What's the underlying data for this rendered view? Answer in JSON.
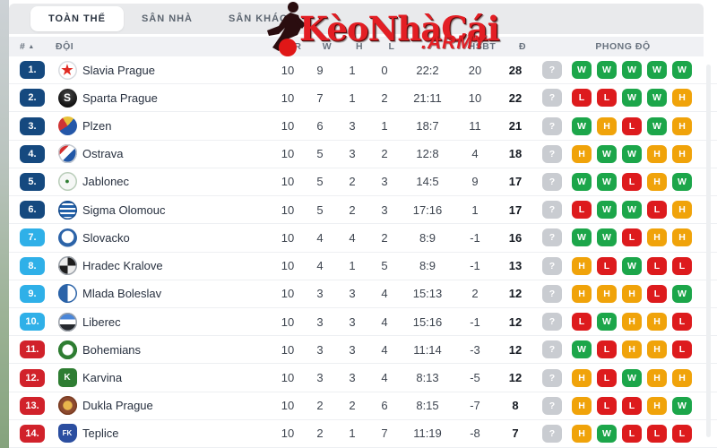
{
  "tabs": {
    "items": [
      {
        "label": "TOÀN THỂ",
        "active": true
      },
      {
        "label": "SÂN NHÀ",
        "active": false
      },
      {
        "label": "SÂN KHÁCH",
        "active": false
      }
    ]
  },
  "watermark": {
    "brand": "KèoNhàCái",
    "suffix": ".ARMY",
    "color": "#e31e24"
  },
  "table": {
    "columns": {
      "rank": "#",
      "rank_sort_icon": "▲",
      "team": "ĐỘI",
      "tr": "TR",
      "w": "W",
      "h": "H",
      "l": "L",
      "goals": "",
      "hsbt": "HSBT",
      "d": "Đ",
      "form": "PHONG ĐỘ"
    },
    "rank_colors": {
      "top": "#15497f",
      "mid": "#2fb0e8",
      "bottom": "#d1222b"
    },
    "form_colors": {
      "W": "#1ca64a",
      "H": "#f0a30a",
      "L": "#dd1b1d",
      "?": "#c9ccd1"
    },
    "rows": [
      {
        "rank": "1.",
        "tier": "top",
        "team": "Slavia Prague",
        "tr": "10",
        "w": "9",
        "h": "1",
        "l": "0",
        "goals": "22:2",
        "hsbt": "20",
        "d": "28",
        "form": [
          "?",
          "W",
          "W",
          "W",
          "W",
          "W"
        ],
        "logo": {
          "bg": "#ffffff",
          "border": "#d8dbe0",
          "glyph": "★",
          "fg": "#e02a22",
          "glyph_size": "15px"
        }
      },
      {
        "rank": "2.",
        "tier": "top",
        "team": "Sparta Prague",
        "tr": "10",
        "w": "7",
        "h": "1",
        "l": "2",
        "goals": "21:11",
        "hsbt": "10",
        "d": "22",
        "form": [
          "?",
          "L",
          "L",
          "W",
          "W",
          "H"
        ],
        "logo": {
          "bg": "radial-gradient(circle at 50% 35%, #484848, #111111 72%)",
          "glyph": "S",
          "fg": "#ffffff",
          "glyph_size": "12px"
        }
      },
      {
        "rank": "3.",
        "tier": "top",
        "team": "Plzen",
        "tr": "10",
        "w": "6",
        "h": "3",
        "l": "1",
        "goals": "18:7",
        "hsbt": "11",
        "d": "21",
        "form": [
          "?",
          "W",
          "H",
          "L",
          "W",
          "H"
        ],
        "logo": {
          "bg": "conic-gradient(from 40deg, #2457a8 0 55%, #cf3434 55% 80%, #e8c23a 80% 100%)",
          "glyph": "",
          "fg": ""
        }
      },
      {
        "rank": "4.",
        "tier": "top",
        "team": "Ostrava",
        "tr": "10",
        "w": "5",
        "h": "3",
        "l": "2",
        "goals": "12:8",
        "hsbt": "4",
        "d": "18",
        "form": [
          "?",
          "H",
          "W",
          "W",
          "H",
          "H"
        ],
        "logo": {
          "bg": "linear-gradient(135deg, #d42f2f 32%, #ffffff 32% 55%, #2057a7 55%)",
          "border": "#c5cad1",
          "glyph": "",
          "fg": "",
          "radius": "50% 50% 46% 46% / 42% 42% 58% 58%"
        }
      },
      {
        "rank": "5.",
        "tier": "top",
        "team": "Jablonec",
        "tr": "10",
        "w": "5",
        "h": "2",
        "l": "3",
        "goals": "14:5",
        "hsbt": "9",
        "d": "17",
        "form": [
          "?",
          "W",
          "W",
          "L",
          "H",
          "W"
        ],
        "logo": {
          "bg": "#f5f7f5",
          "border": "#b9cdb9",
          "glyph": "●",
          "fg": "#2e7d32",
          "glyph_size": "9px"
        }
      },
      {
        "rank": "6.",
        "tier": "top",
        "team": "Sigma Olomouc",
        "tr": "10",
        "w": "5",
        "h": "2",
        "l": "3",
        "goals": "17:16",
        "hsbt": "1",
        "d": "17",
        "form": [
          "?",
          "L",
          "W",
          "W",
          "L",
          "H"
        ],
        "logo": {
          "bg": "repeating-linear-gradient(180deg, #2160a8 0 3px, #ffffff 3px 5px)",
          "border": "#1b4f8f",
          "glyph": "",
          "fg": ""
        }
      },
      {
        "rank": "7.",
        "tier": "mid",
        "team": "Slovacko",
        "tr": "10",
        "w": "4",
        "h": "4",
        "l": "2",
        "goals": "8:9",
        "hsbt": "-1",
        "d": "16",
        "form": [
          "?",
          "W",
          "W",
          "L",
          "H",
          "H"
        ],
        "logo": {
          "bg": "radial-gradient(circle at 50% 45%, #ffffff 42%, #2b63a8 46% 68%, #cdd9ea 72%)",
          "glyph": "",
          "fg": ""
        }
      },
      {
        "rank": "8.",
        "tier": "mid",
        "team": "Hradec Kralove",
        "tr": "10",
        "w": "4",
        "h": "1",
        "l": "5",
        "goals": "8:9",
        "hsbt": "-1",
        "d": "13",
        "form": [
          "?",
          "H",
          "L",
          "W",
          "L",
          "L"
        ],
        "logo": {
          "bg": "conic-gradient(#1d1d1d 0 25%, #ececec 25% 50%, #1d1d1d 50% 75%, #ececec 75%)",
          "border": "#9aa0a8",
          "glyph": "",
          "fg": ""
        }
      },
      {
        "rank": "9.",
        "tier": "mid",
        "team": "Mlada Boleslav",
        "tr": "10",
        "w": "3",
        "h": "3",
        "l": "4",
        "goals": "15:13",
        "hsbt": "2",
        "d": "12",
        "form": [
          "?",
          "H",
          "H",
          "H",
          "L",
          "W"
        ],
        "logo": {
          "bg": "linear-gradient(90deg, #2b63a8 50%, #ffffff 50%)",
          "border": "#2b63a8",
          "glyph": "",
          "fg": ""
        }
      },
      {
        "rank": "10.",
        "tier": "mid",
        "team": "Liberec",
        "tr": "10",
        "w": "3",
        "h": "3",
        "l": "4",
        "goals": "15:16",
        "hsbt": "-1",
        "d": "12",
        "form": [
          "?",
          "L",
          "W",
          "H",
          "H",
          "L"
        ],
        "logo": {
          "bg": "linear-gradient(180deg, #4a86d8 36%, #ffffff 36% 62%, #26292e 62%)",
          "border": "#9aa0a8",
          "glyph": "",
          "fg": ""
        }
      },
      {
        "rank": "11.",
        "tier": "bottom",
        "team": "Bohemians",
        "tr": "10",
        "w": "3",
        "h": "3",
        "l": "4",
        "goals": "11:14",
        "hsbt": "-3",
        "d": "12",
        "form": [
          "?",
          "W",
          "L",
          "H",
          "H",
          "L"
        ],
        "logo": {
          "bg": "radial-gradient(circle, #ffffff 38%, #2e7d32 44%)",
          "border": "#2e7d32",
          "glyph": "",
          "fg": ""
        }
      },
      {
        "rank": "12.",
        "tier": "bottom",
        "team": "Karvina",
        "tr": "10",
        "w": "3",
        "h": "3",
        "l": "4",
        "goals": "8:13",
        "hsbt": "-5",
        "d": "12",
        "form": [
          "?",
          "H",
          "L",
          "W",
          "H",
          "H"
        ],
        "logo": {
          "bg": "#2e7d32",
          "glyph": "K",
          "fg": "#ffffff",
          "glyph_size": "10px",
          "radius": "5px"
        }
      },
      {
        "rank": "13.",
        "tier": "bottom",
        "team": "Dukla Prague",
        "tr": "10",
        "w": "2",
        "h": "2",
        "l": "6",
        "goals": "8:15",
        "hsbt": "-7",
        "d": "8",
        "form": [
          "?",
          "H",
          "L",
          "L",
          "H",
          "W"
        ],
        "logo": {
          "bg": "radial-gradient(circle at 50% 50%, #e8b64c 32%, #8d4a2f 38%)",
          "border": "#7a3c22",
          "glyph": "",
          "fg": ""
        }
      },
      {
        "rank": "14.",
        "tier": "bottom",
        "team": "Teplice",
        "tr": "10",
        "w": "2",
        "h": "1",
        "l": "7",
        "goals": "11:19",
        "hsbt": "-8",
        "d": "7",
        "form": [
          "?",
          "H",
          "W",
          "L",
          "L",
          "L"
        ],
        "logo": {
          "bg": "#2b4ea0",
          "glyph": "FK",
          "fg": "#ffffff",
          "glyph_size": "8px",
          "radius": "5px 5px 9px 9px"
        }
      }
    ]
  }
}
